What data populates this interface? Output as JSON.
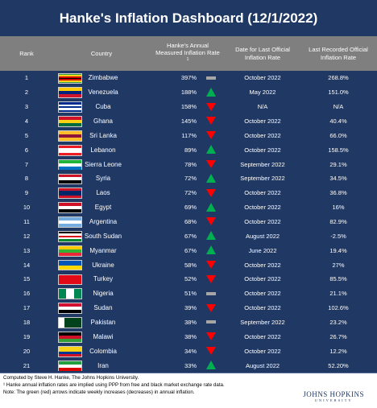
{
  "header": {
    "title": "Hanke's Inflation Dashboard (12/1/2022)"
  },
  "table": {
    "columns": [
      "Rank",
      "Country",
      "Hanke's Annual Measured Inflation Rate",
      "Date for Last Official Inflation Rate",
      "Last Recorded Official Inflation Rate"
    ],
    "footnote_mark": "1",
    "rows": [
      {
        "rank": "1",
        "country": "Zimbabwe",
        "rate": "397%",
        "trend": "flat",
        "date": "October 2022",
        "official": "268.8%",
        "flag": [
          "#319b42",
          "#fcd116",
          "#d40000",
          "#000000",
          "#d40000",
          "#fcd116",
          "#319b42"
        ]
      },
      {
        "rank": "2",
        "country": "Venezuela",
        "rate": "188%",
        "trend": "up",
        "date": "May 2022",
        "official": "151.0%",
        "flag": [
          "#ffcc00",
          "#00247d",
          "#cf142b"
        ]
      },
      {
        "rank": "3",
        "country": "Cuba",
        "rate": "158%",
        "trend": "down",
        "date": "N/A",
        "official": "N/A",
        "flag": [
          "#002a8f",
          "#ffffff",
          "#002a8f",
          "#ffffff",
          "#002a8f"
        ]
      },
      {
        "rank": "4",
        "country": "Ghana",
        "rate": "145%",
        "trend": "down",
        "date": "October 2022",
        "official": "40.4%",
        "flag": [
          "#ce1126",
          "#fcd116",
          "#006b3f"
        ]
      },
      {
        "rank": "5",
        "country": "Sri Lanka",
        "rate": "117%",
        "trend": "down",
        "date": "October 2022",
        "official": "66.0%",
        "flag": [
          "#ffbe29",
          "#8d153a",
          "#ffbe29"
        ]
      },
      {
        "rank": "6",
        "country": "Lebanon",
        "rate": "89%",
        "trend": "up",
        "date": "October 2022",
        "official": "158.5%",
        "flag": [
          "#ed1c24",
          "#ffffff",
          "#ffffff",
          "#ed1c24"
        ]
      },
      {
        "rank": "7",
        "country": "Sierra Leone",
        "rate": "78%",
        "trend": "down",
        "date": "September 2022",
        "official": "29.1%",
        "flag": [
          "#1eb53a",
          "#ffffff",
          "#0072c6"
        ]
      },
      {
        "rank": "8",
        "country": "Syria",
        "rate": "72%",
        "trend": "up",
        "date": "September 2022",
        "official": "34.5%",
        "flag": [
          "#ce1126",
          "#ffffff",
          "#000000"
        ]
      },
      {
        "rank": "9",
        "country": "Laos",
        "rate": "72%",
        "trend": "down",
        "date": "October 2022",
        "official": "36.8%",
        "flag": [
          "#ce1126",
          "#002868",
          "#002868",
          "#ce1126"
        ]
      },
      {
        "rank": "10",
        "country": "Egypt",
        "rate": "69%",
        "trend": "up",
        "date": "October 2022",
        "official": "16%",
        "flag": [
          "#ce1126",
          "#ffffff",
          "#000000"
        ]
      },
      {
        "rank": "11",
        "country": "Argentina",
        "rate": "68%",
        "trend": "down",
        "date": "October 2022",
        "official": "82.9%",
        "flag": [
          "#74acdf",
          "#ffffff",
          "#74acdf"
        ]
      },
      {
        "rank": "12",
        "country": "South Sudan",
        "rate": "67%",
        "trend": "up",
        "date": "August 2022",
        "official": "-2.5%",
        "flag": [
          "#000000",
          "#ffffff",
          "#da121a",
          "#ffffff",
          "#078930"
        ]
      },
      {
        "rank": "13",
        "country": "Myanmar",
        "rate": "67%",
        "trend": "up",
        "date": "June 2022",
        "official": "19.4%",
        "flag": [
          "#fecb00",
          "#34b233",
          "#ea2839"
        ]
      },
      {
        "rank": "14",
        "country": "Ukraine",
        "rate": "58%",
        "trend": "down",
        "date": "October 2022",
        "official": "27%",
        "flag": [
          "#0057b7",
          "#ffd700"
        ]
      },
      {
        "rank": "15",
        "country": "Turkey",
        "rate": "52%",
        "trend": "down",
        "date": "October 2022",
        "official": "85.5%",
        "flag": [
          "#e30a17"
        ]
      },
      {
        "rank": "16",
        "country": "Nigeria",
        "rate": "51%",
        "trend": "flat",
        "date": "October 2022",
        "official": "21.1%",
        "flag": [
          "#008751",
          "#ffffff",
          "#008751"
        ],
        "flag_vertical": true
      },
      {
        "rank": "17",
        "country": "Sudan",
        "rate": "39%",
        "trend": "down",
        "date": "October 2022",
        "official": "102.6%",
        "flag": [
          "#d21034",
          "#ffffff",
          "#000000"
        ]
      },
      {
        "rank": "18",
        "country": "Pakistan",
        "rate": "38%",
        "trend": "flat",
        "date": "September 2022",
        "official": "23.2%",
        "flag": [
          "#ffffff",
          "#01411c",
          "#01411c",
          "#01411c"
        ],
        "flag_vertical": true
      },
      {
        "rank": "19",
        "country": "Malawi",
        "rate": "38%",
        "trend": "down",
        "date": "October 2022",
        "official": "26.7%",
        "flag": [
          "#000000",
          "#ce1126",
          "#339e35"
        ]
      },
      {
        "rank": "20",
        "country": "Colombia",
        "rate": "34%",
        "trend": "down",
        "date": "October 2022",
        "official": "12.2%",
        "flag": [
          "#fcd116",
          "#fcd116",
          "#003893",
          "#ce1126"
        ]
      },
      {
        "rank": "21",
        "country": "Iran",
        "rate": "33%",
        "trend": "up",
        "date": "August 2022",
        "official": "52.20%",
        "flag": [
          "#239f40",
          "#ffffff",
          "#da0000"
        ]
      }
    ]
  },
  "footer": {
    "notes": [
      "Computed by Steve H. Hanke, The Johns Hopkins University.",
      "¹ Hanke annual inflation rates are implied using PPP from free and black market exchange rate data.",
      "Note: The green (red) arrows indicate weekly increases (decreases) in annual inflation."
    ],
    "logo": {
      "name": "JOHNS HOPKINS",
      "sub": "UNIVERSITY"
    }
  },
  "trend_colors": {
    "up": "#00b050",
    "down": "#ff0000",
    "flat": "#a6a6a6"
  }
}
